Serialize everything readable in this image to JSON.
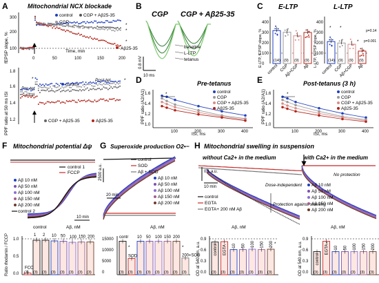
{
  "colors": {
    "control": "#1f3fbf",
    "cgp": "#9a9a9a",
    "abeta": "#b22418",
    "red": "#c62828",
    "black": "#111111",
    "dark": "#333333"
  },
  "panels": {
    "A": {
      "letter": "A",
      "title": "Mitochondrial NCX blockade",
      "top_ylabel": "fEPSP slope, %",
      "top_legend": [
        "control",
        "CGP + Aβ25-35",
        "CGP",
        "Aβ25-35"
      ],
      "top_xlabel": "Time, min",
      "top_yticks": [
        "300",
        "200",
        "100"
      ],
      "top_xticks": [
        "0",
        "50",
        "100",
        "150",
        "200"
      ],
      "sig": [
        "*",
        "*",
        "*"
      ],
      "bottom_ylabel": "PPF ratio at 50 ms ISI",
      "bottom_yticks": [
        "1.8",
        "1.6",
        "1.4",
        "1.2"
      ],
      "pre": "Pre-tet",
      "post": "Post-tet",
      "bottom_legend": [
        "control",
        "CGP + Aβ25-35",
        "CGP",
        "Aβ25-35"
      ]
    },
    "B": {
      "letter": "B",
      "title_left": "CGP",
      "title_right": "CGP + Aβ25-35",
      "labels": [
        "baseline",
        "L-LTP",
        "tetanus"
      ],
      "scale_y": "0.8 mV",
      "scale_x": "10 ms"
    },
    "C": {
      "letter": "C",
      "title_left": "E-LTP",
      "title_right": "L-LTP",
      "ylabel_left": "E-LTP, fEPSP slope, %",
      "ylabel_right": "L-LTP, fEPSP slope, %",
      "yticks": [
        "400",
        "300",
        "200",
        "100",
        "0"
      ],
      "cats": [
        "control",
        "CGP",
        "Aβ+CGP",
        "Aβ"
      ],
      "n": [
        "(14)",
        "(9)",
        "(9)",
        "(9)"
      ],
      "e_values": [
        318,
        302,
        268,
        300
      ],
      "l_values": [
        212,
        198,
        186,
        120
      ],
      "sig": [
        "*",
        "*",
        "*"
      ],
      "pval": "p=0.14",
      "pval2": "p=0.001"
    },
    "D": {
      "letter": "D",
      "title": "Pre-tetanus",
      "ylabel": "PPF ratio (A2/A1)",
      "xlabel": "ISI, ms",
      "xticks": [
        "100",
        "200",
        "300",
        "400"
      ],
      "yticks": [
        "1.6",
        "1.4",
        "1.2",
        "1.0"
      ],
      "legend": [
        "control",
        "CGP",
        "CGP + Aβ25-35",
        "Aβ25-35"
      ]
    },
    "E": {
      "letter": "E",
      "title": "Post-tetanus (3 h)",
      "ylabel": "PPF ratio (A2/A1)",
      "xlabel": "ISI, ms",
      "xticks": [
        "100",
        "200",
        "300",
        "400"
      ],
      "yticks": [
        "1.6",
        "1.4",
        "1.2",
        "1.0"
      ],
      "legend": [
        "control",
        "CGP",
        "CGP + Aβ25-35",
        "Aβ25-35"
      ]
    },
    "F": {
      "letter": "F",
      "title": "Mitochondrial potential Δψ",
      "legend_top": [
        "control 1",
        "FCCP"
      ],
      "legend_bottom": [
        "Aβ 10 nM",
        "Aβ 50 nM",
        "Aβ 100 nM",
        "Aβ 150 nM",
        "Aβ 200 nM",
        "control 2"
      ],
      "time_scale": "10 min",
      "bar_ylabel": "Ratio rhodamin / FCCP",
      "bar_group": "control",
      "bar_group2": "Aβ, nM",
      "bar_cats": [
        "FCCP",
        "1",
        "2",
        "10",
        "50",
        "100",
        "150",
        "200"
      ],
      "bar_values": [
        0.05,
        1.0,
        1.0,
        0.98,
        0.97,
        0.94,
        0.95,
        0.95
      ],
      "n": "(3)",
      "yticks": [
        "1.0",
        "0.5",
        "0.0"
      ]
    },
    "G": {
      "letter": "G",
      "title": "Superoxide production O2•−",
      "legend": [
        "control",
        "SOD",
        "Aβ + SOD",
        "Aβ 10 nM",
        "Aβ 50 nM",
        "Aβ 100 nM",
        "Aβ 150 nM",
        "Aβ 200 nM"
      ],
      "y_scale": "2500 a.u.",
      "time_scale": "20 min",
      "bar_group": "Aβ, nM",
      "bar_cats": [
        "contr",
        "SOD",
        "10",
        "50",
        "100",
        "150",
        "200",
        "200+SOD"
      ],
      "bar_values": [
        14000,
        6800,
        14000,
        14000,
        14000,
        14000,
        14000,
        7000
      ],
      "yticks": [
        "15000",
        "10000",
        "5000",
        "0"
      ],
      "n": "(3)",
      "ylabel": "a.u."
    },
    "H": {
      "letter": "H",
      "title": "Mitochondrial swelling in suspension",
      "sub_left": "without Ca2+ in the medium",
      "sub_right": "with Ca2+ in the medium",
      "y_scale": "0.1 a.u.",
      "time_scale": "10 min",
      "legend_left": [
        "control",
        "EGTA",
        "EGTA+ 200 nM Aβ"
      ],
      "annot_left": [
        "Dose-independent",
        "Protection against swelling"
      ],
      "annot_right": "No protection",
      "legend_right": [
        "Aβ 10 nM",
        "Aβ 50 nM",
        "Aβ 100 nM",
        "Aβ 150 nM",
        "Aβ 200 nM"
      ],
      "bar_ylabel": "OD at 540 nm, a.u.",
      "bar_group": "Aβ, nM",
      "bar_left_cats": [
        "control",
        "EGTA",
        "10",
        "50",
        "100",
        "150",
        "200"
      ],
      "bar_left_values": [
        0.82,
        0.83,
        0.63,
        0.63,
        0.64,
        0.63,
        0.64
      ],
      "bar_right_cats": [
        "control",
        "EGTA",
        "10",
        "50",
        "100",
        "150",
        "200"
      ],
      "bar_right_values": [
        0.58,
        0.84,
        0.58,
        0.58,
        0.58,
        0.58,
        0.58
      ],
      "yticks": [
        "0.9",
        "0.6",
        "0.3",
        "0.0"
      ],
      "n": "(3)"
    }
  }
}
